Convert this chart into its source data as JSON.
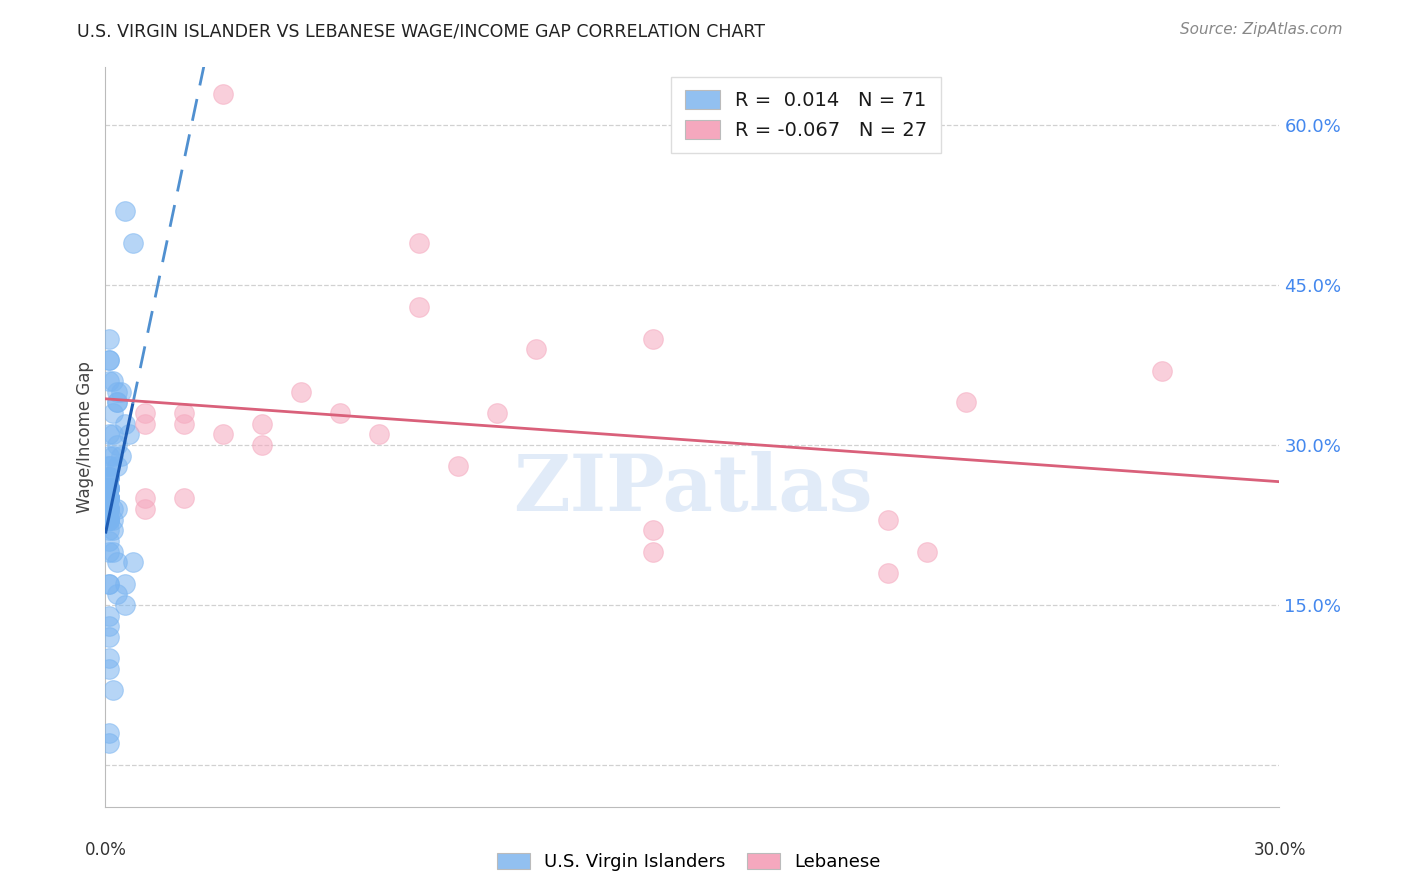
{
  "title": "U.S. VIRGIN ISLANDER VS LEBANESE WAGE/INCOME GAP CORRELATION CHART",
  "source": "Source: ZipAtlas.com",
  "ylabel": "Wage/Income Gap",
  "watermark": "ZIPatlas",
  "right_yticklabels": [
    "15.0%",
    "30.0%",
    "45.0%",
    "60.0%"
  ],
  "right_yticks": [
    0.15,
    0.3,
    0.45,
    0.6
  ],
  "all_yticks": [
    0.0,
    0.15,
    0.3,
    0.45,
    0.6
  ],
  "xlim": [
    0.0,
    0.3
  ],
  "ylim": [
    -0.04,
    0.655
  ],
  "legend_r1": "R =  0.014   N = 71",
  "legend_r2": "R = -0.067   N = 27",
  "legend_color1": "#92c0f0",
  "legend_color2": "#f5a8be",
  "blue_scatter_color": "#7ab4f0",
  "pink_scatter_color": "#f5a8be",
  "trend_blue_solid": "#1e5cb3",
  "trend_blue_dash": "#5090d0",
  "trend_pink": "#d9607a",
  "grid_color": "#cccccc",
  "title_color": "#222222",
  "source_color": "#888888",
  "ytick_color": "#4488ee",
  "xtick_color": "#333333",
  "blue_scatter_x": [
    0.005,
    0.007,
    0.001,
    0.001,
    0.001,
    0.001,
    0.002,
    0.003,
    0.004,
    0.003,
    0.003,
    0.002,
    0.005,
    0.006,
    0.001,
    0.002,
    0.003,
    0.001,
    0.002,
    0.004,
    0.003,
    0.001,
    0.001,
    0.001,
    0.001,
    0.001,
    0.001,
    0.001,
    0.001,
    0.001,
    0.001,
    0.001,
    0.001,
    0.001,
    0.001,
    0.001,
    0.001,
    0.001,
    0.001,
    0.001,
    0.003,
    0.002,
    0.001,
    0.001,
    0.001,
    0.001,
    0.001,
    0.001,
    0.001,
    0.001,
    0.002,
    0.002,
    0.001,
    0.001,
    0.001,
    0.002,
    0.003,
    0.007,
    0.001,
    0.001,
    0.005,
    0.003,
    0.005,
    0.001,
    0.001,
    0.001,
    0.001,
    0.001,
    0.002,
    0.001,
    0.001
  ],
  "blue_scatter_y": [
    0.52,
    0.49,
    0.4,
    0.38,
    0.38,
    0.36,
    0.36,
    0.35,
    0.35,
    0.34,
    0.34,
    0.33,
    0.32,
    0.31,
    0.31,
    0.31,
    0.3,
    0.29,
    0.29,
    0.29,
    0.28,
    0.28,
    0.28,
    0.27,
    0.27,
    0.27,
    0.27,
    0.26,
    0.26,
    0.26,
    0.26,
    0.26,
    0.25,
    0.25,
    0.25,
    0.25,
    0.25,
    0.25,
    0.25,
    0.24,
    0.24,
    0.24,
    0.24,
    0.24,
    0.24,
    0.23,
    0.23,
    0.23,
    0.23,
    0.23,
    0.23,
    0.22,
    0.22,
    0.21,
    0.2,
    0.2,
    0.19,
    0.19,
    0.17,
    0.17,
    0.17,
    0.16,
    0.15,
    0.14,
    0.13,
    0.12,
    0.1,
    0.09,
    0.07,
    0.03,
    0.02
  ],
  "pink_scatter_x": [
    0.03,
    0.08,
    0.08,
    0.11,
    0.14,
    0.01,
    0.01,
    0.02,
    0.02,
    0.03,
    0.04,
    0.04,
    0.07,
    0.09,
    0.1,
    0.01,
    0.01,
    0.02,
    0.14,
    0.21,
    0.22,
    0.27,
    0.2,
    0.05,
    0.06,
    0.14,
    0.2
  ],
  "pink_scatter_y": [
    0.63,
    0.49,
    0.43,
    0.39,
    0.4,
    0.33,
    0.32,
    0.33,
    0.32,
    0.31,
    0.32,
    0.3,
    0.31,
    0.28,
    0.33,
    0.25,
    0.24,
    0.25,
    0.22,
    0.2,
    0.34,
    0.37,
    0.23,
    0.35,
    0.33,
    0.2,
    0.18
  ],
  "blue_trend_intercept": 0.255,
  "blue_trend_slope": 2.0,
  "pink_trend_intercept": 0.338,
  "pink_trend_slope": -0.3,
  "blue_solid_xrange": [
    0.0,
    0.008
  ],
  "blue_dash_xrange": [
    0.008,
    0.3
  ]
}
